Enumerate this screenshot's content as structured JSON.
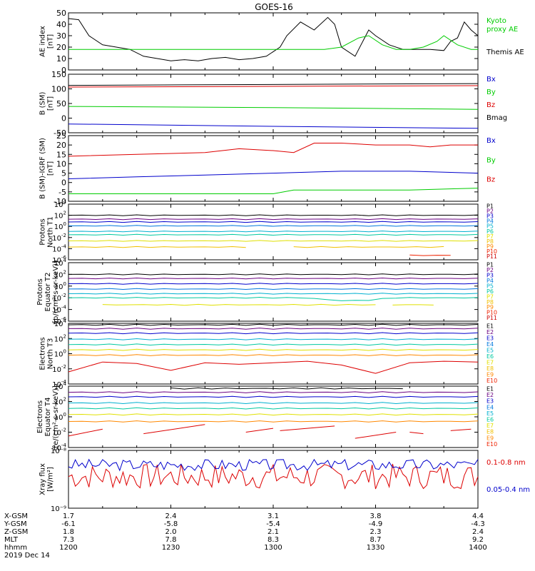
{
  "title": "GOES-16",
  "time_axis": {
    "start_hhmm": "1200",
    "end_hhmm": "1400",
    "tick_labels": [
      "1200",
      "1230",
      "1300",
      "1330",
      "1400"
    ],
    "date_label": "2019 Dec 14",
    "rows": [
      {
        "label": "X-GSM",
        "values": [
          "1.7",
          "2.4",
          "3.1",
          "3.8",
          "4.4"
        ]
      },
      {
        "label": "Y-GSM",
        "values": [
          "-6.1",
          "-5.8",
          "-5.4",
          "-4.9",
          "-4.3"
        ]
      },
      {
        "label": "Z-GSM",
        "values": [
          "1.8",
          "2.0",
          "2.1",
          "2.3",
          "2.4"
        ]
      },
      {
        "label": "MLT",
        "values": [
          "7.3",
          "7.8",
          "8.3",
          "8.7",
          "9.2"
        ]
      },
      {
        "label": "hhmm",
        "values": [
          "1200",
          "1230",
          "1300",
          "1330",
          "1400"
        ]
      }
    ]
  },
  "colors": {
    "black": "#000000",
    "blue": "#0000cc",
    "green": "#00cc00",
    "red": "#dd0000",
    "p1": "#000000",
    "p2": "#6a0080",
    "p3": "#0000cc",
    "p4": "#0077dd",
    "p5": "#00b0d0",
    "p6": "#00c8a0",
    "p7": "#e0e000",
    "p8": "#f0c000",
    "p9": "#ff8800",
    "p10": "#ee2200",
    "p11": "#cc0000"
  },
  "chart_data": [
    {
      "type": "line",
      "panel": "ae",
      "ylabel": [
        "AE index",
        "[nT]"
      ],
      "ylim": [
        0,
        50
      ],
      "yticks": [
        0,
        10,
        20,
        30,
        40,
        50
      ],
      "legend": [
        {
          "label": "Kyoto",
          "color": "#00cc00"
        },
        {
          "label": "proxy AE",
          "color": "#00cc00"
        },
        {
          "label": "Themis AE",
          "color": "#000000"
        }
      ],
      "series": [
        {
          "name": "Themis AE",
          "color": "#000000",
          "t": [
            0,
            3,
            6,
            10,
            14,
            18,
            22,
            26,
            30,
            34,
            38,
            42,
            46,
            50,
            54,
            58,
            62,
            64,
            68,
            72,
            76,
            78,
            80,
            84,
            88,
            90,
            94,
            98,
            102,
            106,
            110,
            112,
            114,
            116,
            118,
            120
          ],
          "values": [
            45,
            44,
            30,
            22,
            20,
            18,
            12,
            10,
            8,
            9,
            8,
            10,
            11,
            9,
            10,
            12,
            20,
            30,
            42,
            35,
            46,
            40,
            20,
            12,
            35,
            30,
            22,
            18,
            18,
            18,
            17,
            25,
            28,
            42,
            35,
            30
          ]
        },
        {
          "name": "Kyoto proxy AE",
          "color": "#00cc00",
          "t": [
            0,
            30,
            60,
            75,
            80,
            85,
            88,
            92,
            96,
            100,
            104,
            108,
            110,
            114,
            118,
            120
          ],
          "values": [
            18,
            18,
            18,
            18,
            20,
            28,
            30,
            22,
            18,
            18,
            20,
            25,
            30,
            22,
            18,
            18
          ]
        }
      ]
    },
    {
      "type": "line",
      "panel": "b_sm",
      "ylabel": [
        "B (SM)",
        "[nT]"
      ],
      "ylim": [
        -50,
        150
      ],
      "yticks": [
        -50,
        0,
        50,
        100,
        150
      ],
      "legend": [
        {
          "label": "Bx",
          "color": "#0000cc"
        },
        {
          "label": "By",
          "color": "#00cc00"
        },
        {
          "label": "Bz",
          "color": "#dd0000"
        },
        {
          "label": "Bmag",
          "color": "#000000"
        }
      ],
      "series": [
        {
          "name": "Bmag",
          "color": "#000000",
          "t": [
            0,
            120
          ],
          "values": [
            112,
            118
          ]
        },
        {
          "name": "Bz",
          "color": "#dd0000",
          "t": [
            0,
            120
          ],
          "values": [
            106,
            111
          ]
        },
        {
          "name": "By",
          "color": "#00cc00",
          "t": [
            0,
            60,
            120
          ],
          "values": [
            40,
            36,
            30
          ]
        },
        {
          "name": "Bx",
          "color": "#0000cc",
          "t": [
            0,
            60,
            120
          ],
          "values": [
            -20,
            -28,
            -35
          ]
        }
      ]
    },
    {
      "type": "line",
      "panel": "b_igrf",
      "ylabel": [
        "B (SM)-IGRF (SM)",
        "[nT]"
      ],
      "ylim": [
        -10,
        25
      ],
      "yticks": [
        -10,
        -5,
        0,
        5,
        10,
        15,
        20,
        25
      ],
      "legend": [
        {
          "label": "Bx",
          "color": "#0000cc"
        },
        {
          "label": "By",
          "color": "#00cc00"
        },
        {
          "label": "Bz",
          "color": "#dd0000"
        }
      ],
      "series": [
        {
          "name": "Bz",
          "color": "#dd0000",
          "t": [
            0,
            20,
            40,
            50,
            60,
            66,
            72,
            80,
            90,
            100,
            106,
            112,
            120
          ],
          "values": [
            14,
            15,
            16,
            18,
            17,
            16,
            21,
            21,
            20,
            20,
            19,
            20,
            20
          ]
        },
        {
          "name": "Bx",
          "color": "#0000cc",
          "t": [
            0,
            20,
            40,
            60,
            80,
            100,
            120
          ],
          "values": [
            2,
            3,
            4,
            5,
            6,
            6,
            5
          ]
        },
        {
          "name": "By",
          "color": "#00cc00",
          "t": [
            0,
            30,
            60,
            66,
            80,
            100,
            120
          ],
          "values": [
            -6,
            -6,
            -6,
            -4,
            -4,
            -4,
            -3
          ]
        }
      ]
    },
    {
      "type": "line",
      "panel": "protons_t1",
      "ylabel": [
        "Protons",
        "North T1"
      ],
      "log": true,
      "ylim_exp": [
        -6,
        4
      ],
      "ytick_exps": [
        -6,
        -4,
        -2,
        0,
        2,
        4
      ],
      "legend": [
        "P1",
        "P2",
        "P3",
        "P4",
        "P5",
        "P6",
        "P7",
        "P8",
        "P9",
        "P10",
        "P11"
      ],
      "series": [
        {
          "name": "P1",
          "color": "#000000",
          "level": 2.0
        },
        {
          "name": "P2",
          "color": "#6a0080",
          "level": 1.3
        },
        {
          "name": "P3",
          "color": "#0000cc",
          "level": 0.8
        },
        {
          "name": "P4",
          "color": "#0077dd",
          "level": 0.1
        },
        {
          "name": "P5",
          "color": "#00b0d0",
          "level": -0.9
        },
        {
          "name": "P6",
          "color": "#00c8a0",
          "level": -1.5
        },
        {
          "name": "P7",
          "color": "#e0e000",
          "level": -2.6
        },
        {
          "name": "P8",
          "color": "#f0c000",
          "level": -3.7,
          "segments": [
            [
              0,
              55
            ],
            [
              66,
              110
            ]
          ]
        },
        {
          "name": "P10",
          "color": "#ee2200",
          "level": -5.2,
          "segments": [
            [
              100,
              113
            ]
          ]
        }
      ]
    },
    {
      "type": "line",
      "panel": "protons_t2",
      "ylabel": [
        "Protons",
        "Equator T2",
        "[p/(cm²-s-sr-keV)]"
      ],
      "log": true,
      "ylim_exp": [
        -6,
        4
      ],
      "ytick_exps": [
        -6,
        -4,
        -2,
        0,
        2,
        4
      ],
      "legend": [
        "P1",
        "P2",
        "P3",
        "P4",
        "P5",
        "P6",
        "P7",
        "P8",
        "P9",
        "P10",
        "P11"
      ],
      "series": [
        {
          "name": "P1",
          "color": "#000000",
          "level": 2.0
        },
        {
          "name": "P2",
          "color": "#6a0080",
          "level": 1.3
        },
        {
          "name": "P3",
          "color": "#0000cc",
          "level": 0.4
        },
        {
          "name": "P4",
          "color": "#0077dd",
          "level": -0.5
        },
        {
          "name": "P5",
          "color": "#00b0d0",
          "level": -1.3
        },
        {
          "name": "P6",
          "color": "#00c8a0",
          "level": -2.0,
          "dip": true
        },
        {
          "name": "P7",
          "color": "#e0e000",
          "level": -3.2,
          "segments": [
            [
              10,
              90
            ],
            [
              95,
              110
            ]
          ]
        }
      ]
    },
    {
      "type": "line",
      "panel": "electrons_t3",
      "ylabel": [
        "Electrons",
        "North T3"
      ],
      "log": true,
      "ylim_exp": [
        -4,
        4
      ],
      "ytick_exps": [
        -4,
        -2,
        0,
        2,
        4
      ],
      "legend": [
        "E1",
        "E2",
        "E3",
        "E4",
        "E5",
        "E6",
        "E7",
        "E8",
        "E9",
        "E10"
      ],
      "series": [
        {
          "name": "E1",
          "color": "#000000",
          "level": 3.8
        },
        {
          "name": "E2",
          "color": "#6a0080",
          "level": 3.3
        },
        {
          "name": "E3",
          "color": "#0000cc",
          "level": 2.7
        },
        {
          "name": "E4",
          "color": "#00b0d0",
          "level": 1.9
        },
        {
          "name": "E5",
          "color": "#00c8a0",
          "level": 1.2
        },
        {
          "name": "E6",
          "color": "#e0e000",
          "level": 0.5
        },
        {
          "name": "E7",
          "color": "#ff8800",
          "level": -0.2
        },
        {
          "name": "E9",
          "color": "#dd0000",
          "t": [
            0,
            10,
            20,
            30,
            40,
            50,
            60,
            70,
            80,
            90,
            100,
            110,
            120
          ],
          "values": [
            -2.4,
            -1.1,
            -1.3,
            -2.2,
            -1.2,
            -1.4,
            -1.2,
            -1.0,
            -1.5,
            -2.6,
            -1.2,
            -1.0,
            -1.1
          ]
        }
      ]
    },
    {
      "type": "line",
      "panel": "electrons_t4",
      "ylabel": [
        "Electrons",
        "Equator T4",
        "[e/(cm²-s-sr-keV)]"
      ],
      "log": true,
      "ylim_exp": [
        -4,
        4
      ],
      "ytick_exps": [
        -4,
        -2,
        0,
        2,
        4
      ],
      "legend": [
        "E1",
        "E2",
        "E3",
        "E4",
        "E5",
        "E6",
        "E7",
        "E8",
        "E9",
        "E10"
      ],
      "series": [
        {
          "name": "E1",
          "color": "#000000",
          "level": 3.7,
          "segments": [
            [
              30,
              100
            ]
          ]
        },
        {
          "name": "E2",
          "color": "#6a0080",
          "level": 3.2
        },
        {
          "name": "E3",
          "color": "#0000cc",
          "level": 2.6
        },
        {
          "name": "E4",
          "color": "#00b0d0",
          "level": 1.8
        },
        {
          "name": "E5",
          "color": "#00c8a0",
          "level": 1.1
        },
        {
          "name": "E6",
          "color": "#e0e000",
          "level": 0.3
        },
        {
          "name": "E7",
          "color": "#ff8800",
          "level": -0.6
        },
        {
          "name": "E9",
          "color": "#dd0000",
          "segments_xy": [
            [
              0,
              -2.5,
              10,
              -1.6
            ],
            [
              22,
              -2.2,
              40,
              -1.0
            ],
            [
              52,
              -2.0,
              60,
              -1.5
            ],
            [
              62,
              -1.8,
              78,
              -1.2
            ],
            [
              84,
              -2.8,
              96,
              -2.0
            ],
            [
              100,
              -2.0,
              104,
              -2.2
            ],
            [
              112,
              -1.8,
              118,
              -1.6
            ]
          ]
        }
      ]
    },
    {
      "type": "line",
      "panel": "xray",
      "ylabel": [
        "Xray flux",
        "[W/m²]"
      ],
      "log": true,
      "ylim_exp": [
        -9,
        -8
      ],
      "ytick_labels": [
        "10⁻⁸",
        "10⁻⁹"
      ],
      "legend": [
        {
          "label": "0.1-0.8 nm",
          "color": "#dd0000"
        },
        {
          "label": "0.05-0.4 nm",
          "color": "#0000cc"
        }
      ],
      "series": [
        {
          "name": "0.1-0.8 nm",
          "color": "#dd0000",
          "base": -8.45,
          "amp": 0.22,
          "seed": 7
        },
        {
          "name": "0.05-0.4 nm",
          "color": "#0000cc",
          "base": -8.25,
          "amp": 0.1,
          "seed": 3
        }
      ]
    }
  ]
}
